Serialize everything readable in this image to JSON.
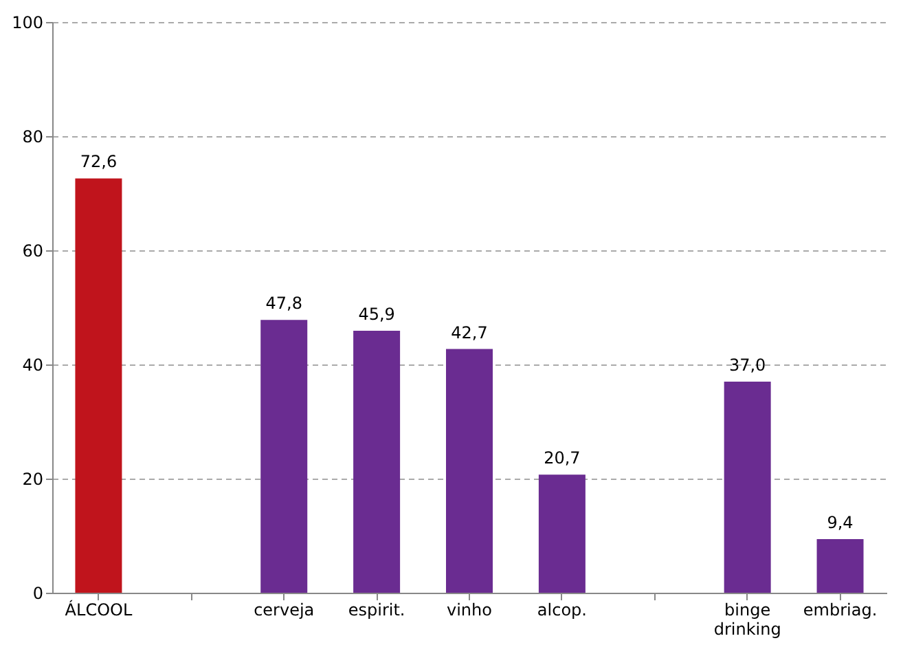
{
  "chart_data": {
    "type": "bar",
    "categories": [
      "ÁLCOOL",
      null,
      "cerveja",
      "espirit.",
      "vinho",
      "alcop.",
      null,
      "binge drinking",
      "embriag."
    ],
    "values": [
      72.6,
      null,
      47.8,
      45.9,
      42.7,
      20.7,
      null,
      37.0,
      9.4
    ],
    "colors": [
      "#c0141c",
      "#6a2c91",
      "#6a2c91",
      "#6a2c91",
      "#6a2c91",
      "#6a2c91",
      "#6a2c91",
      "#6a2c91",
      "#6a2c91"
    ],
    "value_labels": [
      "72,6",
      null,
      "47,8",
      "45,9",
      "42,7",
      "20,7",
      null,
      "37,0",
      "9,4"
    ],
    "ylim": [
      0,
      100
    ],
    "yticks": [
      0,
      20,
      40,
      60,
      80,
      100
    ],
    "grid": "y"
  }
}
